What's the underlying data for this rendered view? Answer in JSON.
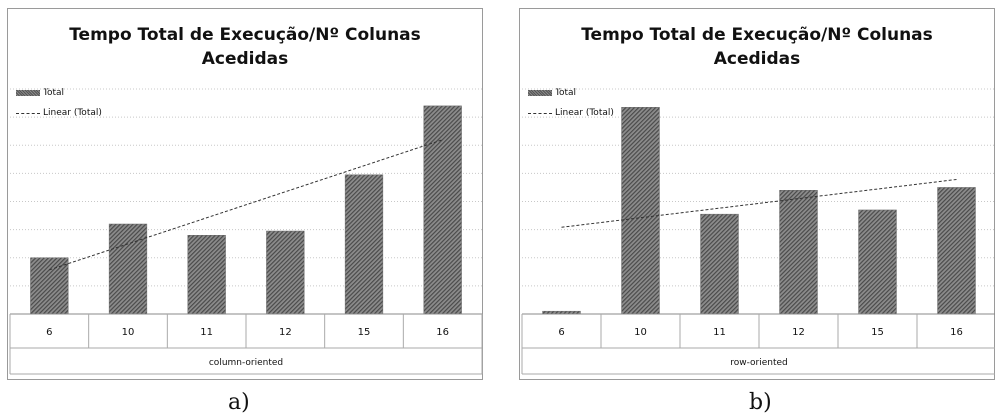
{
  "chart_data": [
    {
      "type": "bar",
      "title": "Tempo Total de Execução/Nº Colunas Acedidas",
      "title_lines": [
        "Tempo Total de Execução/Nº Colunas",
        "Acedidas"
      ],
      "categories": [
        "6",
        "10",
        "11",
        "12",
        "15",
        "16"
      ],
      "group_label": "column-oriented",
      "series": [
        {
          "name": "Total",
          "values": [
            2,
            3.2,
            2.8,
            2.95,
            4.95,
            7.4
          ]
        }
      ],
      "trendline": {
        "name": "Linear (Total)",
        "type": "linear"
      },
      "ylim": [
        0,
        8
      ],
      "grid": true,
      "legend": "top-left",
      "caption": "a)"
    },
    {
      "type": "bar",
      "title": "Tempo Total de Execução/Nº Colunas Acedidas",
      "title_lines": [
        "Tempo Total de Execução/Nº Colunas",
        "Acedidas"
      ],
      "categories": [
        "6",
        "10",
        "11",
        "12",
        "15",
        "16"
      ],
      "group_label": "row-oriented",
      "series": [
        {
          "name": "Total",
          "values": [
            0.1,
            7.35,
            3.55,
            4.4,
            3.7,
            4.5
          ]
        }
      ],
      "trendline": {
        "name": "Linear (Total)",
        "type": "linear"
      },
      "ylim": [
        0,
        8
      ],
      "grid": true,
      "legend": "top-left",
      "caption": "b)"
    }
  ],
  "colors": {
    "bar": "#7a7a7a",
    "grid": "#c8c8c8",
    "trend": "#333333"
  }
}
